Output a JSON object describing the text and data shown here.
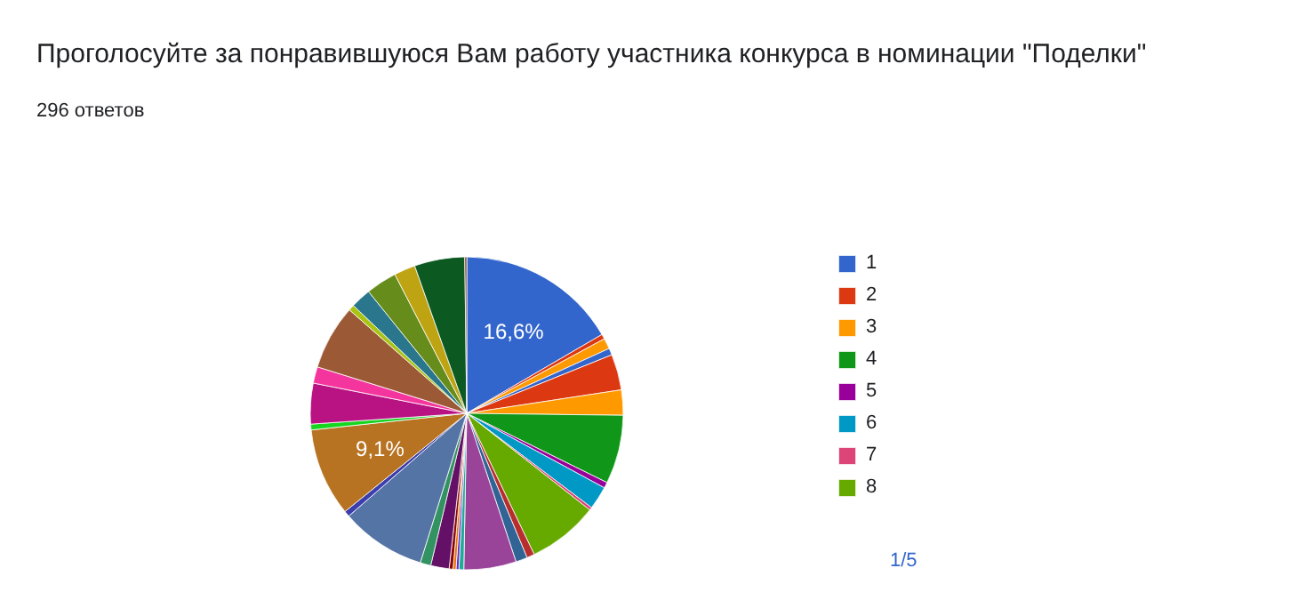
{
  "chart_data": {
    "type": "pie",
    "title": "Проголосуйте за понравившуюся Вам работу участника конкурса в номинации \"Поделки\"",
    "subtitle": "296 ответов",
    "categories": [
      "1",
      null,
      null,
      null,
      "2",
      "3",
      "4",
      "5",
      "6",
      "7",
      "8",
      null,
      null,
      null,
      null,
      null,
      null,
      null,
      null,
      null,
      null,
      null,
      null,
      null,
      null,
      null,
      null,
      null,
      null,
      null,
      null,
      null,
      null
    ],
    "values": [
      16.6,
      0.5,
      1.1,
      0.7,
      3.7,
      2.6,
      7.1,
      0.6,
      2.4,
      0.3,
      7.3,
      0.8,
      1.2,
      5.4,
      0.5,
      0.3,
      0.3,
      0.4,
      1.9,
      1.1,
      8.8,
      0.6,
      9.1,
      0.6,
      4.2,
      1.7,
      6.7,
      0.6,
      2.1,
      3.2,
      2.2,
      5.2,
      0.2
    ],
    "colors": [
      "#3366cc",
      "#dc3912",
      "#ff9900",
      "#3366cc",
      "#dc3912",
      "#ff9900",
      "#109618",
      "#990099",
      "#0099c6",
      "#dd4477",
      "#66aa00",
      "#b82e2e",
      "#316395",
      "#994499",
      "#22aa99",
      "#6633cc",
      "#e67300",
      "#8b0707",
      "#651067",
      "#329262",
      "#5574a6",
      "#3b3eac",
      "#b77322",
      "#16d620",
      "#b91383",
      "#f4359e",
      "#9c5935",
      "#a9c413",
      "#2a778d",
      "#668d1c",
      "#bea413",
      "#0c5922",
      "#743411"
    ],
    "value_labels": [
      "16,6%",
      null,
      null,
      null,
      null,
      null,
      null,
      null,
      null,
      null,
      null,
      null,
      null,
      null,
      null,
      null,
      null,
      null,
      null,
      null,
      null,
      null,
      "9,1%",
      null,
      null,
      null,
      null,
      null,
      null,
      null,
      null,
      null,
      null
    ],
    "legend": "right",
    "annotations": [
      "1/5"
    ]
  }
}
